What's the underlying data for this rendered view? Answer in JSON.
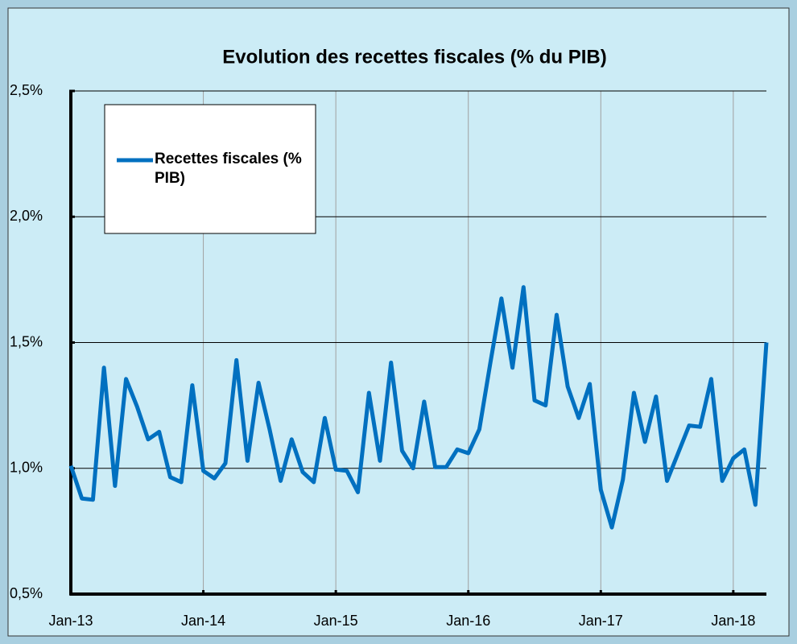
{
  "chart_data": {
    "type": "line",
    "title": "Evolution des recettes fiscales (% du PIB)",
    "categories": [
      "Jan-13",
      null,
      null,
      null,
      null,
      null,
      null,
      null,
      null,
      null,
      null,
      null,
      "Jan-14",
      null,
      null,
      null,
      null,
      null,
      null,
      null,
      null,
      null,
      null,
      null,
      "Jan-15",
      null,
      null,
      null,
      null,
      null,
      null,
      null,
      null,
      null,
      null,
      null,
      "Jan-16",
      null,
      null,
      null,
      null,
      null,
      null,
      null,
      null,
      null,
      null,
      null,
      "Jan-17",
      null,
      null,
      null,
      null,
      null,
      null,
      null,
      null,
      null,
      null,
      null,
      "Jan-18",
      null,
      null,
      null
    ],
    "series": [
      {
        "name": "Recettes fiscales (% PIB)",
        "color": "#0070c0",
        "values": [
          1.01,
          0.88,
          0.875,
          1.4,
          0.93,
          1.355,
          1.245,
          1.115,
          1.145,
          0.965,
          0.945,
          1.33,
          0.99,
          0.96,
          1.02,
          1.43,
          1.03,
          1.34,
          1.155,
          0.95,
          1.115,
          0.985,
          0.945,
          1.2,
          0.995,
          0.99,
          0.905,
          1.3,
          1.03,
          1.42,
          1.07,
          1.0,
          1.265,
          1.005,
          1.005,
          1.075,
          1.06,
          1.155,
          1.42,
          1.675,
          1.4,
          1.72,
          1.27,
          1.25,
          1.61,
          1.325,
          1.2,
          1.335,
          0.915,
          0.765,
          0.955,
          1.3,
          1.105,
          1.285,
          0.95,
          1.06,
          1.17,
          1.165,
          1.355,
          0.95,
          1.04,
          1.075,
          0.855,
          1.5
        ]
      }
    ],
    "ylim": [
      0.5,
      2.5
    ],
    "yticks": [
      {
        "value": 0.5,
        "label": "0,5%"
      },
      {
        "value": 1.0,
        "label": "1,0%"
      },
      {
        "value": 1.5,
        "label": "1,5%"
      },
      {
        "value": 2.0,
        "label": "2,0%"
      },
      {
        "value": 2.5,
        "label": "2,5%"
      }
    ],
    "grid": true
  }
}
